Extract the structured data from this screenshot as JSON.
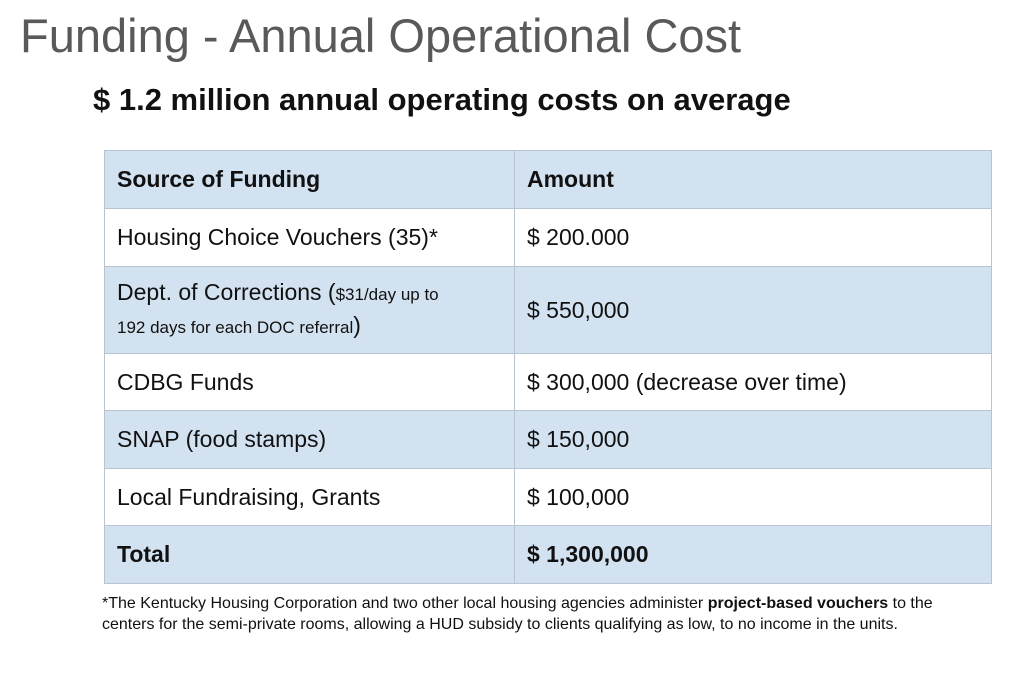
{
  "title": "Funding - Annual Operational Cost",
  "subtitle": "$ 1.2 million annual operating costs on average",
  "table": {
    "header": {
      "source": "Source of Funding",
      "amount": "Amount"
    },
    "rows": [
      {
        "source": "Housing Choice Vouchers (35)*",
        "amount": "$ 200.000"
      },
      {
        "source_main": "Dept. of Corrections (",
        "source_note_a": "$31/day up to",
        "source_note_b": "192 days for each DOC referral",
        "source_close": ")",
        "amount": "$ 550,000"
      },
      {
        "source": "CDBG Funds",
        "amount": "$ 300,000 (decrease over time)"
      },
      {
        "source": "SNAP (food stamps)",
        "amount": "$ 150,000"
      },
      {
        "source": "Local Fundraising, Grants",
        "amount": "$ 100,000"
      }
    ],
    "total": {
      "source": "Total",
      "amount": "$ 1,300,000"
    }
  },
  "footnote": {
    "part1": "*The Kentucky Housing Corporation and two other local housing agencies administer ",
    "bold": "project-based vouchers",
    "part2": " to the centers for the semi-private rooms, allowing a HUD subsidy to clients qualifying as low, to no income in the units."
  }
}
